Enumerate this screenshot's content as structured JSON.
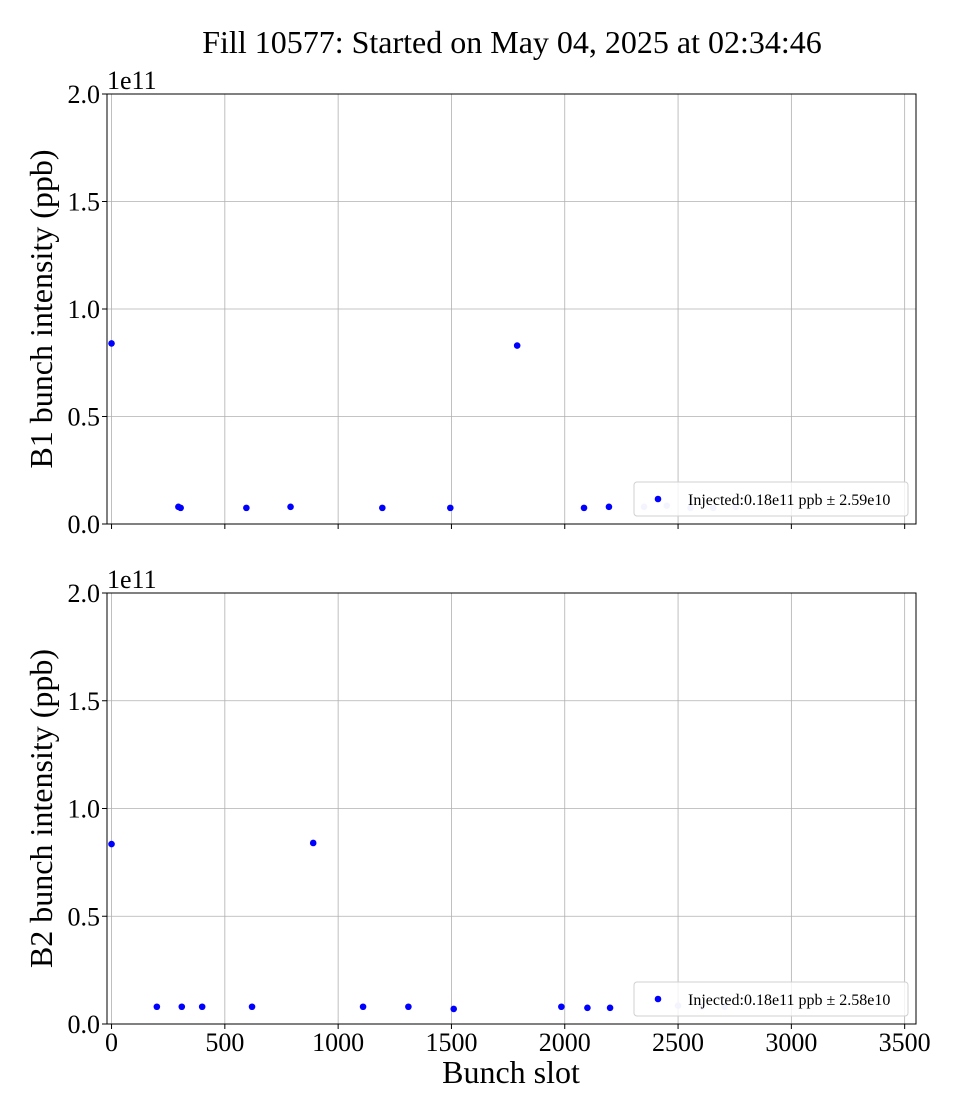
{
  "chart_data": [
    {
      "type": "scatter",
      "title": "Fill 10577: Started on May 04, 2025 at 02:34:46",
      "ylabel": "B1 bunch intensity (ppb)",
      "xlabel": "",
      "offset_text": "1e11",
      "xlim": [
        -20,
        3550
      ],
      "ylim": [
        0,
        200000000000.0
      ],
      "xticks": [
        0,
        500,
        1000,
        1500,
        2000,
        2500,
        3000,
        3500
      ],
      "yticks": [
        0,
        50000000000.0,
        100000000000.0,
        150000000000.0,
        200000000000.0
      ],
      "ytick_labels": [
        "0.0",
        "0.5",
        "1.0",
        "1.5",
        "2.0"
      ],
      "grid": true,
      "legend_position": "lower right",
      "series": [
        {
          "name": "Injected:0.18e11 ppb ± 2.59e10",
          "color": "#0000ff",
          "x": [
            0,
            295,
            305,
            595,
            790,
            1195,
            1495,
            1790,
            2085,
            2195
          ],
          "y": [
            84000000000.0,
            8000000000.0,
            7500000000.0,
            7500000000.0,
            8000000000.0,
            7500000000.0,
            7500000000.0,
            83000000000.0,
            7500000000.0,
            8000000000.0
          ]
        },
        {
          "name": "",
          "color": "#c8c8ff",
          "x": [
            2350,
            2450,
            2555,
            2655,
            2755
          ],
          "y": [
            8000000000.0,
            8500000000.0,
            7500000000.0,
            7500000000.0,
            8000000000.0
          ]
        }
      ]
    },
    {
      "type": "scatter",
      "title": "",
      "ylabel": "B2 bunch intensity (ppb)",
      "xlabel": "Bunch slot",
      "offset_text": "1e11",
      "xlim": [
        -20,
        3550
      ],
      "ylim": [
        0,
        200000000000.0
      ],
      "xticks": [
        0,
        500,
        1000,
        1500,
        2000,
        2500,
        3000,
        3500
      ],
      "yticks": [
        0,
        50000000000.0,
        100000000000.0,
        150000000000.0,
        200000000000.0
      ],
      "ytick_labels": [
        "0.0",
        "0.5",
        "1.0",
        "1.5",
        "2.0"
      ],
      "grid": true,
      "legend_position": "lower right",
      "series": [
        {
          "name": "Injected:0.18e11 ppb ± 2.58e10",
          "color": "#0000ff",
          "x": [
            0,
            200,
            310,
            400,
            620,
            890,
            1110,
            1310,
            1510,
            1985,
            2100,
            2200
          ],
          "y": [
            83500000000.0,
            8000000000.0,
            8000000000.0,
            8000000000.0,
            8000000000.0,
            84000000000.0,
            8000000000.0,
            8000000000.0,
            7000000000.0,
            8000000000.0,
            7500000000.0,
            7500000000.0
          ]
        },
        {
          "name": "",
          "color": "#c8c8ff",
          "x": [
            2500,
            2605,
            2705
          ],
          "y": [
            8500000000.0,
            8000000000.0,
            8000000000.0
          ]
        }
      ]
    }
  ]
}
